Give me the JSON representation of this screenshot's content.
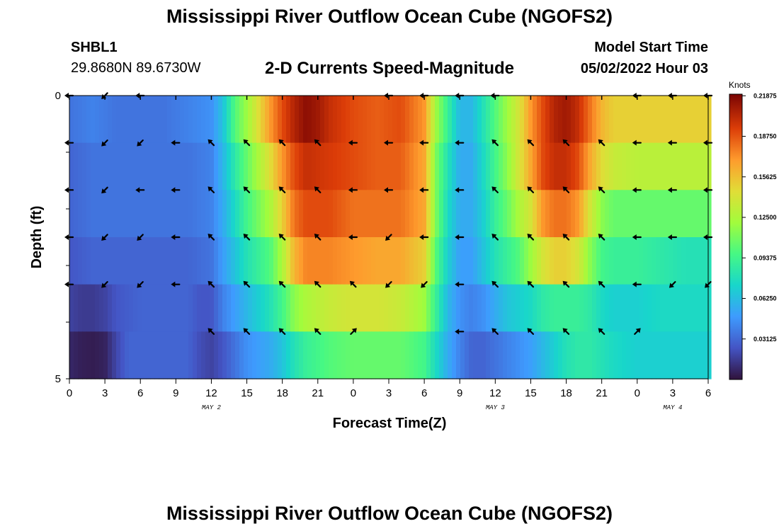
{
  "header": {
    "title": "Mississippi River Outflow Ocean Cube (NGOFS2)",
    "station_id": "SHBL1",
    "station_coords": "29.8680N  89.6730W",
    "panel_title": "2-D Currents Speed-Magnitude",
    "start_label": "Model Start Time",
    "start_value": "05/02/2022 Hour 03"
  },
  "footer": {
    "title": "Mississippi River Outflow Ocean Cube (NGOFS2)"
  },
  "chart_data": {
    "type": "heatmap",
    "xlabel": "Forecast Time(Z)",
    "ylabel": "Depth (ft)",
    "x_tick_labels": [
      "0",
      "3",
      "6",
      "9",
      "12",
      "15",
      "18",
      "21",
      "0",
      "3",
      "6",
      "9",
      "12",
      "15",
      "18",
      "21",
      "0",
      "3",
      "6"
    ],
    "x_range_hours": [
      0,
      54
    ],
    "day_labels": [
      {
        "text": "MAY 2",
        "hour": 12
      },
      {
        "text": "MAY 3",
        "hour": 36
      },
      {
        "text": "MAY 4",
        "hour": 51
      }
    ],
    "y_tick_labels": [
      "0",
      "5"
    ],
    "y_range_ft": [
      0,
      5
    ],
    "colorbar": {
      "unit": "Knots",
      "labels": [
        "0.21875",
        "0.18750",
        "0.15625",
        "0.12500",
        "0.09375",
        "0.06250",
        "0.03125"
      ],
      "range": [
        0,
        0.22
      ]
    },
    "speed_rows": [
      {
        "depth": 0,
        "x": [
          0,
          2,
          4,
          6,
          8,
          10,
          12,
          13,
          14,
          15,
          16,
          17,
          18,
          19,
          20,
          21,
          22,
          24,
          26,
          28,
          30,
          31,
          32,
          33,
          34,
          35,
          36,
          37,
          38,
          39,
          40,
          41,
          42,
          43,
          44,
          45,
          46,
          48,
          50,
          52,
          54
        ],
        "v": [
          0.035,
          0.04,
          0.035,
          0.035,
          0.035,
          0.04,
          0.045,
          0.065,
          0.1,
          0.12,
          0.145,
          0.17,
          0.19,
          0.205,
          0.215,
          0.21,
          0.2,
          0.19,
          0.185,
          0.19,
          0.17,
          0.12,
          0.09,
          0.06,
          0.06,
          0.08,
          0.1,
          0.12,
          0.14,
          0.17,
          0.19,
          0.205,
          0.21,
          0.2,
          0.18,
          0.16,
          0.15,
          0.15,
          0.15,
          0.15,
          0.15
        ]
      },
      {
        "depth": 1,
        "x": [
          0,
          2,
          4,
          6,
          8,
          10,
          12,
          13,
          14,
          15,
          16,
          17,
          18,
          19,
          20,
          22,
          24,
          26,
          28,
          30,
          31,
          32,
          33,
          34,
          35,
          36,
          37,
          38,
          39,
          40,
          41,
          42,
          43,
          44,
          45,
          46,
          48,
          50,
          52,
          54
        ],
        "v": [
          0.03,
          0.035,
          0.035,
          0.035,
          0.035,
          0.035,
          0.04,
          0.06,
          0.085,
          0.105,
          0.125,
          0.145,
          0.17,
          0.19,
          0.2,
          0.195,
          0.19,
          0.185,
          0.185,
          0.165,
          0.11,
          0.08,
          0.055,
          0.055,
          0.075,
          0.095,
          0.115,
          0.14,
          0.165,
          0.19,
          0.2,
          0.2,
          0.19,
          0.165,
          0.145,
          0.135,
          0.13,
          0.13,
          0.13,
          0.13
        ]
      },
      {
        "depth": 2,
        "x": [
          0,
          2,
          4,
          6,
          8,
          10,
          12,
          13,
          14,
          15,
          16,
          17,
          18,
          19,
          20,
          22,
          24,
          26,
          28,
          30,
          31,
          32,
          33,
          34,
          35,
          36,
          37,
          38,
          39,
          40,
          41,
          42,
          43,
          44,
          45,
          46,
          48,
          50,
          52,
          54
        ],
        "v": [
          0.03,
          0.035,
          0.035,
          0.035,
          0.035,
          0.035,
          0.04,
          0.055,
          0.075,
          0.095,
          0.11,
          0.125,
          0.15,
          0.18,
          0.19,
          0.19,
          0.18,
          0.18,
          0.18,
          0.165,
          0.11,
          0.075,
          0.055,
          0.055,
          0.07,
          0.09,
          0.105,
          0.125,
          0.14,
          0.17,
          0.18,
          0.18,
          0.17,
          0.14,
          0.115,
          0.105,
          0.105,
          0.105,
          0.105,
          0.105
        ]
      },
      {
        "depth": 3,
        "x": [
          0,
          2,
          4,
          6,
          8,
          10,
          12,
          13,
          14,
          15,
          16,
          17,
          18,
          19,
          20,
          22,
          24,
          26,
          28,
          30,
          31,
          32,
          33,
          34,
          35,
          36,
          37,
          38,
          39,
          40,
          41,
          42,
          43,
          44,
          45,
          46,
          48,
          50,
          52,
          54
        ],
        "v": [
          0.025,
          0.03,
          0.03,
          0.03,
          0.03,
          0.03,
          0.035,
          0.05,
          0.065,
          0.08,
          0.09,
          0.1,
          0.125,
          0.16,
          0.175,
          0.175,
          0.17,
          0.165,
          0.165,
          0.15,
          0.1,
          0.07,
          0.05,
          0.05,
          0.065,
          0.08,
          0.09,
          0.1,
          0.12,
          0.14,
          0.15,
          0.15,
          0.14,
          0.115,
          0.095,
          0.09,
          0.09,
          0.085,
          0.08,
          0.08
        ]
      },
      {
        "depth": 4,
        "x": [
          0,
          1,
          2,
          3,
          4,
          6,
          8,
          10,
          11,
          12,
          13,
          14,
          15,
          16,
          17,
          18,
          19,
          20,
          22,
          24,
          26,
          28,
          30,
          31,
          32,
          33,
          34,
          35,
          36,
          37,
          38,
          39,
          40,
          41,
          42,
          43,
          44,
          45,
          46,
          48,
          50,
          52,
          54
        ],
        "v": [
          0.018,
          0.015,
          0.015,
          0.018,
          0.025,
          0.03,
          0.03,
          0.03,
          0.025,
          0.025,
          0.04,
          0.05,
          0.06,
          0.07,
          0.08,
          0.095,
          0.115,
          0.125,
          0.135,
          0.14,
          0.14,
          0.135,
          0.12,
          0.09,
          0.06,
          0.045,
          0.04,
          0.045,
          0.055,
          0.065,
          0.07,
          0.075,
          0.085,
          0.09,
          0.09,
          0.09,
          0.085,
          0.075,
          0.07,
          0.07,
          0.075,
          0.075,
          0.075
        ]
      },
      {
        "depth": 5,
        "x": [
          0,
          1,
          2,
          3,
          4,
          5,
          6,
          8,
          10,
          11,
          12,
          13,
          14,
          15,
          16,
          17,
          18,
          19,
          20,
          22,
          24,
          26,
          28,
          30,
          31,
          32,
          33,
          34,
          35,
          36,
          37,
          38,
          39,
          40,
          41,
          42,
          43,
          44,
          45,
          46,
          48,
          50,
          52,
          54
        ],
        "v": [
          0.008,
          0.005,
          0.004,
          0.006,
          0.02,
          0.03,
          0.03,
          0.03,
          0.03,
          0.022,
          0.018,
          0.025,
          0.035,
          0.045,
          0.05,
          0.055,
          0.065,
          0.08,
          0.09,
          0.1,
          0.105,
          0.105,
          0.105,
          0.095,
          0.075,
          0.055,
          0.04,
          0.03,
          0.03,
          0.035,
          0.04,
          0.045,
          0.05,
          0.06,
          0.07,
          0.08,
          0.085,
          0.085,
          0.08,
          0.075,
          0.07,
          0.07,
          0.07,
          0.07
        ]
      }
    ],
    "vector_rows": [
      {
        "depth": 0,
        "dir": [
          "W",
          "SW",
          "W",
          null,
          null,
          null,
          null,
          null,
          null,
          "W",
          "W",
          "W",
          "W",
          null,
          null,
          null,
          "W",
          "W",
          "W"
        ]
      },
      {
        "depth": 1,
        "dir": [
          "W",
          "SW",
          "SW",
          "W",
          "NW",
          "NW",
          "NW",
          "NW",
          "W",
          "W",
          "W",
          "W",
          "NW",
          "NW",
          "NW",
          "NW",
          "W",
          "W",
          "W"
        ]
      },
      {
        "depth": 2,
        "dir": [
          "W",
          "SW",
          "W",
          "W",
          "NW",
          "NW",
          "NW",
          "NW",
          "W",
          "W",
          "W",
          "W",
          "NW",
          "NW",
          "NW",
          "NW",
          "W",
          "W",
          "W"
        ]
      },
      {
        "depth": 3,
        "dir": [
          "W",
          "SW",
          "SW",
          "W",
          "NW",
          "NW",
          "NW",
          "NW",
          "W",
          "SW",
          "W",
          "W",
          "NW",
          "NW",
          "NW",
          "NW",
          "W",
          "W",
          "W"
        ]
      },
      {
        "depth": 4,
        "dir": [
          "W",
          "SW",
          "SW",
          "W",
          "NW",
          "NW",
          "NW",
          "NW",
          "NW",
          "SW",
          "SW",
          "W",
          "NW",
          "NW",
          "NW",
          "NW",
          "W",
          "SW",
          "SW"
        ]
      },
      {
        "depth": 5,
        "dir": [
          null,
          null,
          null,
          null,
          "NW",
          "NW",
          "NW",
          "NW",
          "NE",
          null,
          null,
          "W",
          "NW",
          "NW",
          "NW",
          "NW",
          "NE",
          null,
          null
        ]
      }
    ]
  }
}
